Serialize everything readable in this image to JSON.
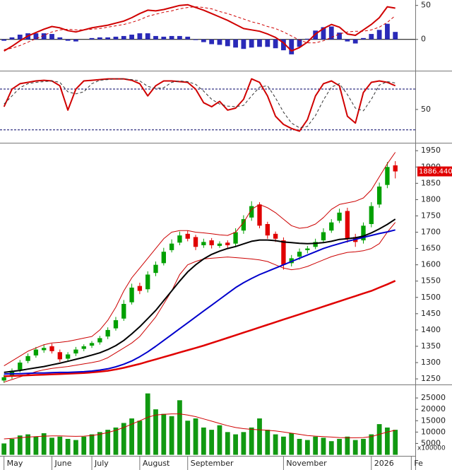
{
  "chart_data": [
    {
      "type": "line",
      "ylim": [
        -45,
        58
      ],
      "yticks": [
        0,
        50
      ],
      "zero_line": true,
      "series": [
        {
          "kind": "bar",
          "color": "#2a2ab8",
          "values": [
            -2,
            3,
            7,
            9,
            9,
            9,
            8,
            3,
            -2,
            -3,
            0,
            2,
            3,
            3,
            4,
            5,
            7,
            9,
            9,
            5,
            4,
            5,
            5,
            4,
            -1,
            -4,
            -7,
            -8,
            -10,
            -12,
            -14,
            -12,
            -11,
            -11,
            -13,
            -16,
            -22,
            -11,
            1,
            13,
            18,
            19,
            10,
            -3,
            -6,
            2,
            8,
            14,
            23,
            11,
            null,
            null
          ]
        },
        {
          "kind": "line",
          "color": "#d00000",
          "width": 2,
          "values": [
            -17,
            -10,
            -2,
            5,
            10,
            15,
            19,
            17,
            13,
            11,
            14,
            17,
            19,
            21,
            24,
            27,
            32,
            38,
            43,
            42,
            44,
            47,
            50,
            51,
            47,
            43,
            38,
            33,
            28,
            22,
            16,
            14,
            12,
            8,
            3,
            -5,
            -17,
            -12,
            -4,
            8,
            16,
            22,
            18,
            8,
            6,
            14,
            22,
            32,
            48,
            46,
            null,
            null
          ]
        },
        {
          "kind": "line",
          "color": "#d00000",
          "width": 1,
          "dashed": true,
          "values": [
            -15,
            -13,
            -9,
            -4,
            1,
            6,
            11,
            14,
            15,
            14,
            14,
            15,
            16,
            18,
            20,
            22,
            25,
            29,
            34,
            37,
            40,
            42,
            45,
            47,
            48,
            47,
            45,
            41,
            38,
            34,
            30,
            26,
            23,
            19,
            16,
            11,
            5,
            -1,
            -5,
            -5,
            -2,
            3,
            8,
            11,
            12,
            12,
            14,
            18,
            25,
            35,
            null,
            null
          ]
        }
      ]
    },
    {
      "type": "line",
      "ylim": [
        2,
        104
      ],
      "yticks": [
        50
      ],
      "levels": [
        20,
        80
      ],
      "series": [
        {
          "kind": "line",
          "color": "#d00000",
          "width": 2,
          "values": [
            54,
            80,
            88,
            90,
            92,
            93,
            92,
            85,
            49,
            80,
            92,
            93,
            94,
            95,
            95,
            95,
            93,
            88,
            70,
            85,
            92,
            92,
            91,
            90,
            80,
            60,
            54,
            62,
            49,
            52,
            65,
            95,
            90,
            70,
            40,
            28,
            22,
            18,
            35,
            70,
            88,
            92,
            85,
            40,
            30,
            75,
            90,
            92,
            90,
            85,
            null,
            null
          ]
        },
        {
          "kind": "line",
          "color": "#333333",
          "width": 1,
          "dashed": true,
          "values": [
            58,
            70,
            82,
            88,
            90,
            91,
            92,
            90,
            76,
            73,
            76,
            88,
            93,
            94,
            95,
            95,
            94,
            92,
            84,
            81,
            82,
            90,
            92,
            91,
            87,
            77,
            65,
            58,
            55,
            54,
            56,
            70,
            83,
            85,
            67,
            46,
            30,
            23,
            25,
            41,
            64,
            83,
            88,
            72,
            52,
            48,
            65,
            86,
            91,
            89,
            null,
            null
          ]
        }
      ]
    },
    {
      "type": "candlestick",
      "ylim": [
        1235,
        1970
      ],
      "yticks": [
        1250,
        1300,
        1350,
        1400,
        1450,
        1500,
        1550,
        1600,
        1650,
        1700,
        1750,
        1800,
        1850,
        1900,
        1950
      ],
      "up_color": "#00a000",
      "down_color": "#e00000",
      "last_price_label": "1886.440",
      "open": [
        1245,
        1258,
        1278,
        1305,
        1322,
        1338,
        1350,
        1332,
        1312,
        1328,
        1342,
        1352,
        1362,
        1380,
        1405,
        1435,
        1485,
        1535,
        1525,
        1575,
        1605,
        1645,
        1668,
        1695,
        1685,
        1660,
        1675,
        1658,
        1668,
        1665,
        1705,
        1745,
        1785,
        1725,
        1695,
        1675,
        1605,
        1625,
        1645,
        1655,
        1675,
        1705,
        1735,
        1765,
        1685,
        1675,
        1725,
        1785,
        1845,
        1905,
        null,
        null
      ],
      "high": [
        1262,
        1282,
        1308,
        1328,
        1348,
        1356,
        1358,
        1340,
        1332,
        1348,
        1356,
        1366,
        1382,
        1408,
        1440,
        1492,
        1542,
        1545,
        1580,
        1610,
        1652,
        1678,
        1702,
        1705,
        1692,
        1680,
        1682,
        1672,
        1675,
        1712,
        1752,
        1795,
        1792,
        1732,
        1702,
        1684,
        1630,
        1650,
        1658,
        1680,
        1712,
        1740,
        1772,
        1775,
        1695,
        1730,
        1792,
        1852,
        1915,
        1918,
        null,
        null
      ],
      "low": [
        1238,
        1250,
        1270,
        1298,
        1315,
        1330,
        1328,
        1302,
        1305,
        1320,
        1335,
        1345,
        1355,
        1372,
        1398,
        1428,
        1478,
        1510,
        1515,
        1565,
        1598,
        1638,
        1660,
        1672,
        1645,
        1652,
        1650,
        1652,
        1652,
        1655,
        1695,
        1735,
        1712,
        1680,
        1670,
        1585,
        1595,
        1615,
        1635,
        1648,
        1668,
        1698,
        1728,
        1668,
        1655,
        1665,
        1715,
        1775,
        1835,
        1865,
        null,
        null
      ],
      "close": [
        1255,
        1275,
        1300,
        1320,
        1340,
        1345,
        1335,
        1310,
        1325,
        1340,
        1350,
        1360,
        1375,
        1400,
        1430,
        1480,
        1530,
        1520,
        1570,
        1600,
        1640,
        1665,
        1690,
        1680,
        1655,
        1670,
        1660,
        1665,
        1660,
        1700,
        1740,
        1780,
        1720,
        1690,
        1680,
        1600,
        1620,
        1640,
        1650,
        1670,
        1700,
        1730,
        1760,
        1680,
        1670,
        1720,
        1780,
        1840,
        1900,
        1886.44,
        null,
        null
      ],
      "series": [
        {
          "kind": "line",
          "color": "#cc0000",
          "width": 1,
          "values": [
            1290,
            1305,
            1320,
            1335,
            1345,
            1355,
            1360,
            1362,
            1365,
            1370,
            1375,
            1380,
            1400,
            1430,
            1470,
            1520,
            1560,
            1590,
            1620,
            1650,
            1680,
            1700,
            1705,
            1705,
            1700,
            1698,
            1695,
            1692,
            1690,
            1700,
            1730,
            1770,
            1785,
            1775,
            1760,
            1740,
            1720,
            1712,
            1715,
            1725,
            1745,
            1770,
            1785,
            1790,
            1795,
            1805,
            1830,
            1870,
            1910,
            1945,
            null,
            null
          ]
        },
        {
          "kind": "line",
          "color": "#cc0000",
          "width": 1,
          "values": [
            1240,
            1248,
            1256,
            1264,
            1272,
            1278,
            1282,
            1285,
            1288,
            1292,
            1296,
            1300,
            1305,
            1315,
            1330,
            1345,
            1360,
            1380,
            1410,
            1440,
            1480,
            1520,
            1570,
            1600,
            1610,
            1618,
            1620,
            1622,
            1624,
            1622,
            1620,
            1618,
            1615,
            1610,
            1600,
            1590,
            1585,
            1588,
            1595,
            1605,
            1615,
            1625,
            1632,
            1638,
            1640,
            1643,
            1650,
            1665,
            1700,
            1730,
            null,
            null
          ]
        },
        {
          "kind": "line",
          "color": "#e00000",
          "width": 2.5,
          "values": [
            1258,
            1259,
            1260,
            1261,
            1262,
            1263,
            1264,
            1265,
            1266,
            1267,
            1268,
            1270,
            1272,
            1275,
            1279,
            1284,
            1290,
            1296,
            1303,
            1310,
            1317,
            1324,
            1331,
            1338,
            1345,
            1352,
            1360,
            1368,
            1376,
            1384,
            1392,
            1400,
            1408,
            1416,
            1424,
            1432,
            1440,
            1448,
            1456,
            1464,
            1472,
            1480,
            1488,
            1496,
            1504,
            1512,
            1520,
            1530,
            1540,
            1551,
            null,
            null
          ]
        },
        {
          "kind": "line",
          "color": "#0000cc",
          "width": 2,
          "values": [
            1265,
            1266,
            1266,
            1267,
            1268,
            1268,
            1269,
            1270,
            1270,
            1271,
            1272,
            1274,
            1277,
            1281,
            1287,
            1295,
            1305,
            1318,
            1333,
            1350,
            1368,
            1386,
            1404,
            1422,
            1440,
            1458,
            1476,
            1494,
            1512,
            1530,
            1545,
            1558,
            1570,
            1580,
            1590,
            1600,
            1610,
            1620,
            1630,
            1640,
            1650,
            1658,
            1665,
            1672,
            1678,
            1684,
            1690,
            1696,
            1701,
            1707,
            null,
            null
          ]
        },
        {
          "kind": "line",
          "color": "#000000",
          "width": 2,
          "values": [
            1270,
            1273,
            1276,
            1280,
            1284,
            1288,
            1293,
            1298,
            1304,
            1310,
            1316,
            1323,
            1330,
            1340,
            1352,
            1368,
            1388,
            1410,
            1435,
            1460,
            1490,
            1520,
            1550,
            1578,
            1600,
            1618,
            1632,
            1642,
            1650,
            1656,
            1664,
            1672,
            1676,
            1676,
            1674,
            1670,
            1668,
            1666,
            1665,
            1666,
            1668,
            1672,
            1678,
            1680,
            1683,
            1688,
            1698,
            1710,
            1724,
            1740,
            null,
            null
          ]
        }
      ]
    },
    {
      "type": "bar",
      "ylim": [
        0,
        30000
      ],
      "yticks": [
        5000,
        10000,
        15000,
        20000,
        25000
      ],
      "annotation": "x100000",
      "categories": [
        "May",
        null,
        null,
        null,
        null,
        null,
        "June",
        null,
        null,
        null,
        null,
        "July",
        null,
        null,
        null,
        null,
        null,
        "August",
        null,
        null,
        null,
        null,
        null,
        "September",
        null,
        null,
        null,
        null,
        null,
        null,
        null,
        null,
        null,
        null,
        null,
        "November",
        null,
        null,
        null,
        null,
        null,
        null,
        null,
        null,
        null,
        null,
        "2026",
        null,
        null,
        null,
        null,
        "Fe"
      ],
      "series": [
        {
          "kind": "bar",
          "color": "#119911",
          "values": [
            5000,
            7000,
            8500,
            9000,
            8000,
            9500,
            7500,
            8000,
            7000,
            6500,
            8000,
            9000,
            10000,
            11000,
            12000,
            14000,
            16000,
            15000,
            27000,
            20000,
            18000,
            17000,
            24000,
            15000,
            16000,
            12000,
            11000,
            13000,
            10000,
            9000,
            10000,
            12000,
            16000,
            11000,
            9000,
            8000,
            9500,
            7000,
            6500,
            8000,
            7500,
            6000,
            7000,
            8000,
            6500,
            7000,
            9000,
            13500,
            12000,
            11000,
            null,
            null
          ]
        },
        {
          "kind": "line",
          "color": "#d00000",
          "width": 1,
          "values": [
            7000,
            7200,
            7500,
            7800,
            8000,
            8200,
            8300,
            8300,
            8200,
            8100,
            8200,
            8500,
            9000,
            9800,
            10800,
            12000,
            13500,
            15000,
            16500,
            17500,
            17800,
            18000,
            18000,
            17500,
            16800,
            15800,
            14800,
            13800,
            12800,
            12000,
            11500,
            11200,
            11000,
            10800,
            10500,
            10000,
            9500,
            9000,
            8500,
            8200,
            8000,
            7800,
            7600,
            7500,
            7500,
            7600,
            8000,
            9000,
            10000,
            10800,
            null,
            null
          ]
        }
      ]
    }
  ]
}
